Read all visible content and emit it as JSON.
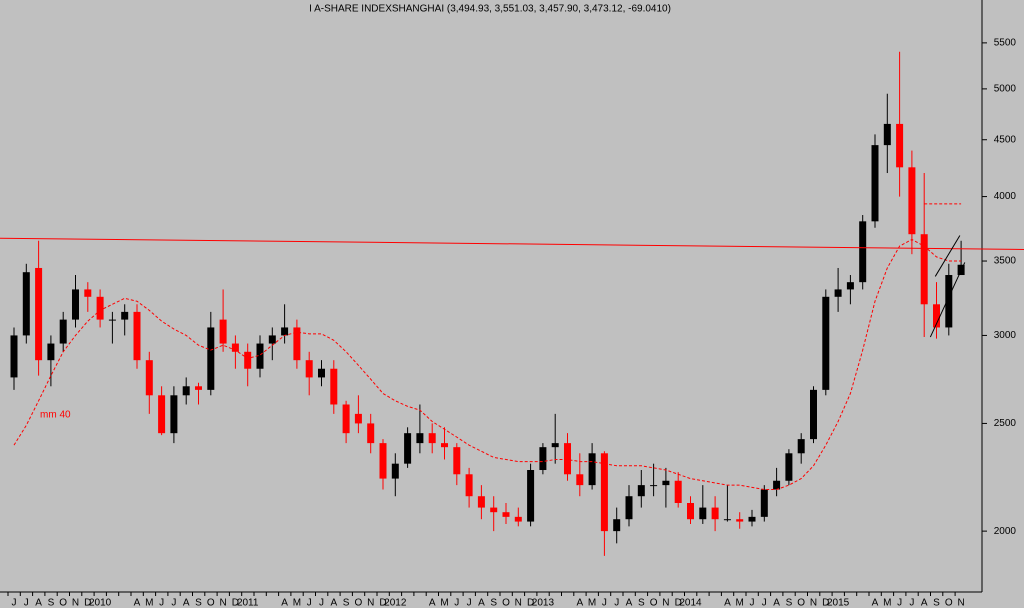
{
  "chart_data": {
    "type": "candlestick",
    "title": "I A-SHARE INDEXSHANGHAI (3,494.93, 3,551.03, 3,457.90, 3,473.12, -69.0410)",
    "categories": [
      "J",
      "J",
      "A",
      "S",
      "O",
      "N",
      "D",
      "2010",
      null,
      null,
      "A",
      "M",
      "J",
      "J",
      "A",
      "S",
      "O",
      "N",
      "D",
      "2011",
      null,
      null,
      "A",
      "M",
      "J",
      "J",
      "A",
      "S",
      "O",
      "N",
      "D",
      "2012",
      null,
      null,
      "A",
      "M",
      "J",
      "J",
      "A",
      "S",
      "O",
      "N",
      "D",
      "2013",
      null,
      null,
      "A",
      "M",
      "J",
      "J",
      "A",
      "S",
      "O",
      "N",
      "D",
      "2014",
      null,
      null,
      "A",
      "M",
      "J",
      "J",
      "A",
      "S",
      "O",
      "N",
      "D",
      "2015",
      null,
      null,
      "A",
      "M",
      "J",
      "J",
      "A",
      "S",
      "O",
      "N"
    ],
    "open": [
      2750,
      3000,
      3450,
      2850,
      2950,
      3100,
      3300,
      3250,
      3100,
      3100,
      3150,
      2850,
      2650,
      2450,
      2650,
      2700,
      2680,
      3100,
      2950,
      2900,
      2800,
      2950,
      3000,
      3050,
      2850,
      2750,
      2800,
      2600,
      2550,
      2500,
      2400,
      2230,
      2300,
      2400,
      2450,
      2400,
      2380,
      2250,
      2150,
      2100,
      2080,
      2060,
      2040,
      2270,
      2380,
      2400,
      2250,
      2200,
      2350,
      2000,
      2050,
      2150,
      2200,
      2200,
      2220,
      2120,
      2050,
      2100,
      2050,
      2050,
      2040,
      2060,
      2180,
      2220,
      2350,
      2420,
      2680,
      3250,
      3300,
      3350,
      3800,
      4450,
      4650,
      4250,
      3700,
      3200,
      3050,
      3400
    ],
    "high": [
      3050,
      3480,
      3650,
      3000,
      3150,
      3400,
      3350,
      3300,
      3150,
      3200,
      3200,
      2900,
      2700,
      2700,
      2750,
      2720,
      3150,
      3300,
      3000,
      2950,
      3000,
      3050,
      3200,
      3100,
      2900,
      2850,
      2850,
      2620,
      2650,
      2550,
      2420,
      2350,
      2480,
      2600,
      2500,
      2480,
      2400,
      2280,
      2200,
      2150,
      2120,
      2100,
      2300,
      2400,
      2550,
      2450,
      2350,
      2400,
      2360,
      2100,
      2200,
      2270,
      2300,
      2280,
      2260,
      2150,
      2200,
      2150,
      2200,
      2080,
      2090,
      2200,
      2280,
      2370,
      2450,
      2700,
      3300,
      3450,
      3400,
      3850,
      4550,
      4950,
      5400,
      4400,
      4200,
      3350,
      3480,
      3650
    ],
    "low": [
      2680,
      2950,
      2760,
      2700,
      2900,
      3050,
      3150,
      3050,
      2950,
      3000,
      2800,
      2550,
      2440,
      2400,
      2600,
      2600,
      2650,
      2900,
      2800,
      2700,
      2750,
      2850,
      2950,
      2800,
      2650,
      2700,
      2550,
      2400,
      2450,
      2350,
      2180,
      2150,
      2280,
      2350,
      2350,
      2320,
      2200,
      2100,
      2050,
      2000,
      2030,
      2020,
      2020,
      2250,
      2300,
      2220,
      2150,
      2180,
      1900,
      1950,
      2020,
      2100,
      2150,
      2100,
      2100,
      2030,
      2030,
      2000,
      2040,
      2010,
      2020,
      2040,
      2150,
      2200,
      2300,
      2400,
      2650,
      3150,
      3200,
      3300,
      3750,
      4200,
      4000,
      3550,
      2990,
      2980,
      3000,
      3400
    ],
    "close": [
      3000,
      3420,
      2850,
      2950,
      3100,
      3300,
      3250,
      3100,
      3100,
      3150,
      2850,
      2650,
      2450,
      2650,
      2700,
      2680,
      3050,
      2950,
      2900,
      2800,
      2950,
      3000,
      3050,
      2850,
      2750,
      2800,
      2600,
      2450,
      2500,
      2400,
      2230,
      2300,
      2450,
      2450,
      2400,
      2380,
      2250,
      2150,
      2100,
      2080,
      2060,
      2040,
      2270,
      2380,
      2400,
      2250,
      2200,
      2350,
      2000,
      2050,
      2150,
      2200,
      2200,
      2220,
      2120,
      2050,
      2100,
      2050,
      2050,
      2040,
      2060,
      2180,
      2220,
      2350,
      2420,
      2680,
      3250,
      3300,
      3350,
      3800,
      4450,
      4650,
      4250,
      3700,
      3200,
      3050,
      3400,
      3473.12
    ],
    "up_color": "#000000",
    "down_color": "#ff0000",
    "series": [
      {
        "name": "mm 40",
        "color": "#ff0000",
        "values": [
          2390,
          2490,
          2620,
          2760,
          2900,
          3000,
          3090,
          3160,
          3200,
          3240,
          3220,
          3160,
          3090,
          3040,
          3000,
          2940,
          2910,
          2940,
          2910,
          2860,
          2880,
          2940,
          3000,
          3020,
          3010,
          3010,
          2970,
          2900,
          2820,
          2740,
          2660,
          2620,
          2590,
          2570,
          2510,
          2470,
          2430,
          2390,
          2360,
          2330,
          2320,
          2310,
          2310,
          2310,
          2320,
          2320,
          2310,
          2310,
          2300,
          2290,
          2290,
          2290,
          2280,
          2270,
          2250,
          2230,
          2220,
          2210,
          2200,
          2200,
          2190,
          2180,
          2180,
          2200,
          2230,
          2290,
          2390,
          2510,
          2660,
          2910,
          3220,
          3450,
          3610,
          3660,
          3610,
          3530,
          3500,
          3500
        ]
      }
    ],
    "annotations": [
      {
        "color": "#ff0000",
        "x": [
          0,
          77
        ],
        "values": [
          3668,
          3590
        ],
        "extend": true
      },
      {
        "color": "#000000",
        "x": [
          74.5,
          77.3
        ],
        "values": [
          2990,
          3490
        ],
        "extend": false
      },
      {
        "color": "#000000",
        "x": [
          74.9,
          76.9
        ],
        "values": [
          3390,
          3690
        ],
        "extend": false
      },
      {
        "color": "#ff0000",
        "x": [
          74,
          77
        ],
        "values": [
          3940,
          3940
        ],
        "extend": false,
        "dashed": true
      }
    ],
    "ylim": [
      1763,
      6011
    ],
    "log_scale": true,
    "yticks": [
      2000,
      2500,
      3000,
      3500,
      4000,
      4500,
      5000,
      5500
    ]
  }
}
